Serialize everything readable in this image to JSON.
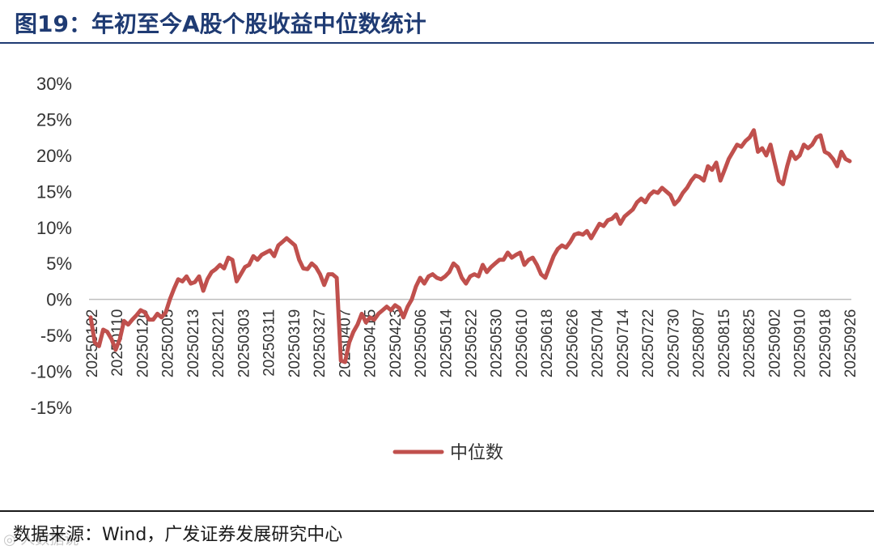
{
  "header": {
    "title": "图19：年初至今A股个股收益中位数统计"
  },
  "footer": {
    "source": "数据来源：Wind，广发证券发展研究中心",
    "watermark": "◎ 人数据说"
  },
  "chart_data": {
    "type": "line",
    "title": "",
    "xlabel": "",
    "ylabel": "",
    "ylim": [
      -15,
      30
    ],
    "yticks": [
      "30%",
      "25%",
      "20%",
      "15%",
      "10%",
      "5%",
      "0%",
      "-5%",
      "-10%",
      "-15%"
    ],
    "xtick_labels": [
      "20250102",
      "20250110",
      "20250120",
      "20250205",
      "20250213",
      "20250221",
      "20250303",
      "20250311",
      "20250319",
      "20250327",
      "20250407",
      "20250415",
      "20250423",
      "20250506",
      "20250514",
      "20250522",
      "20250530",
      "20250610",
      "20250618",
      "20250626",
      "20250704",
      "20250714",
      "20250722",
      "20250730",
      "20250807",
      "20250815",
      "20250825",
      "20250902",
      "20250910",
      "20250918",
      "20250926"
    ],
    "legend": {
      "position": "bottom",
      "entries": [
        "中位数"
      ]
    },
    "series": [
      {
        "name": "中位数",
        "color": "#c0504d",
        "values": [
          -2.5,
          -6,
          -6.5,
          -4.2,
          -4.5,
          -5.5,
          -7,
          -5.5,
          -3,
          -3.5,
          -2.8,
          -2.2,
          -1.5,
          -1.8,
          -2.8,
          -2.8,
          -2,
          -2.5,
          -1.8,
          0,
          1.5,
          2.8,
          2.5,
          3.2,
          2.2,
          2.4,
          3.2,
          1.2,
          2.8,
          3.8,
          4.2,
          4.8,
          4.3,
          5.8,
          5.5,
          2.5,
          3.5,
          4.5,
          4.8,
          6,
          5.5,
          6.2,
          6.5,
          6.8,
          6,
          7.5,
          8,
          8.5,
          8,
          7.5,
          5.5,
          4.3,
          4.2,
          5,
          4.5,
          3.5,
          2,
          3.5,
          3.5,
          3,
          -8.5,
          -8.7,
          -6,
          -4.5,
          -3.5,
          -2,
          -3.2,
          -2.5,
          -2.8,
          -2,
          -1.5,
          -1,
          -1.5,
          -0.8,
          -1.2,
          -2.5,
          -1,
          0,
          1.8,
          3,
          2.2,
          3.2,
          3.5,
          3,
          2.8,
          3.2,
          3.8,
          5,
          4.5,
          3,
          2.2,
          3.2,
          3.5,
          3.2,
          4.8,
          3.8,
          4.5,
          5,
          5.5,
          5.5,
          6.5,
          5.8,
          6.2,
          6.5,
          4.8,
          5.5,
          5.8,
          4.8,
          3.5,
          3,
          4.5,
          6,
          7,
          7.5,
          7.2,
          8,
          9,
          9.2,
          9,
          9.5,
          8.5,
          9.5,
          10.5,
          10.2,
          11,
          11.2,
          11.8,
          10.5,
          11.5,
          12,
          12.5,
          13.5,
          14,
          13.5,
          14.5,
          15,
          14.8,
          15.5,
          15,
          14.5,
          13.2,
          13.8,
          14.8,
          15.5,
          16.5,
          17.2,
          17,
          16.5,
          18.5,
          18,
          19,
          16.5,
          18,
          19.5,
          20.5,
          21.5,
          21.2,
          22,
          22.5,
          23.5,
          20.5,
          21,
          20,
          21.5,
          19,
          16.5,
          16,
          18.5,
          20.5,
          19.5,
          20,
          21.5,
          21,
          21.5,
          22.5,
          22.8,
          20.5,
          20.2,
          19.5,
          18.5,
          20.5,
          19.5,
          19.2
        ]
      }
    ]
  }
}
